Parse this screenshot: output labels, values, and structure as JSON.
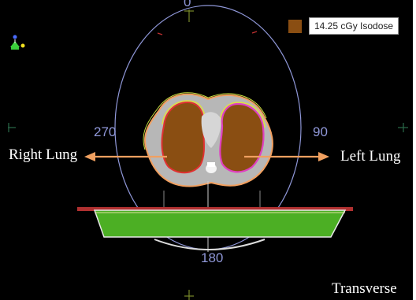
{
  "viewer": {
    "view_name": "Transverse",
    "legend": {
      "color": "#8a4e12",
      "label": "14.25 cGy Isodose"
    },
    "gantry_angles": {
      "top": "0",
      "left": "270",
      "right": "90",
      "bottom": "180"
    },
    "annotations": {
      "left_side": "Right Lung",
      "right_side": "Left Lung"
    },
    "colors": {
      "gantry_circle": "#8f97d8",
      "isodose": "#8a4e12",
      "arrow": "#f0a060",
      "couch": "#4caf24",
      "beam_line": "#b03030"
    },
    "icons": [
      "orientation-figure-icon"
    ]
  }
}
